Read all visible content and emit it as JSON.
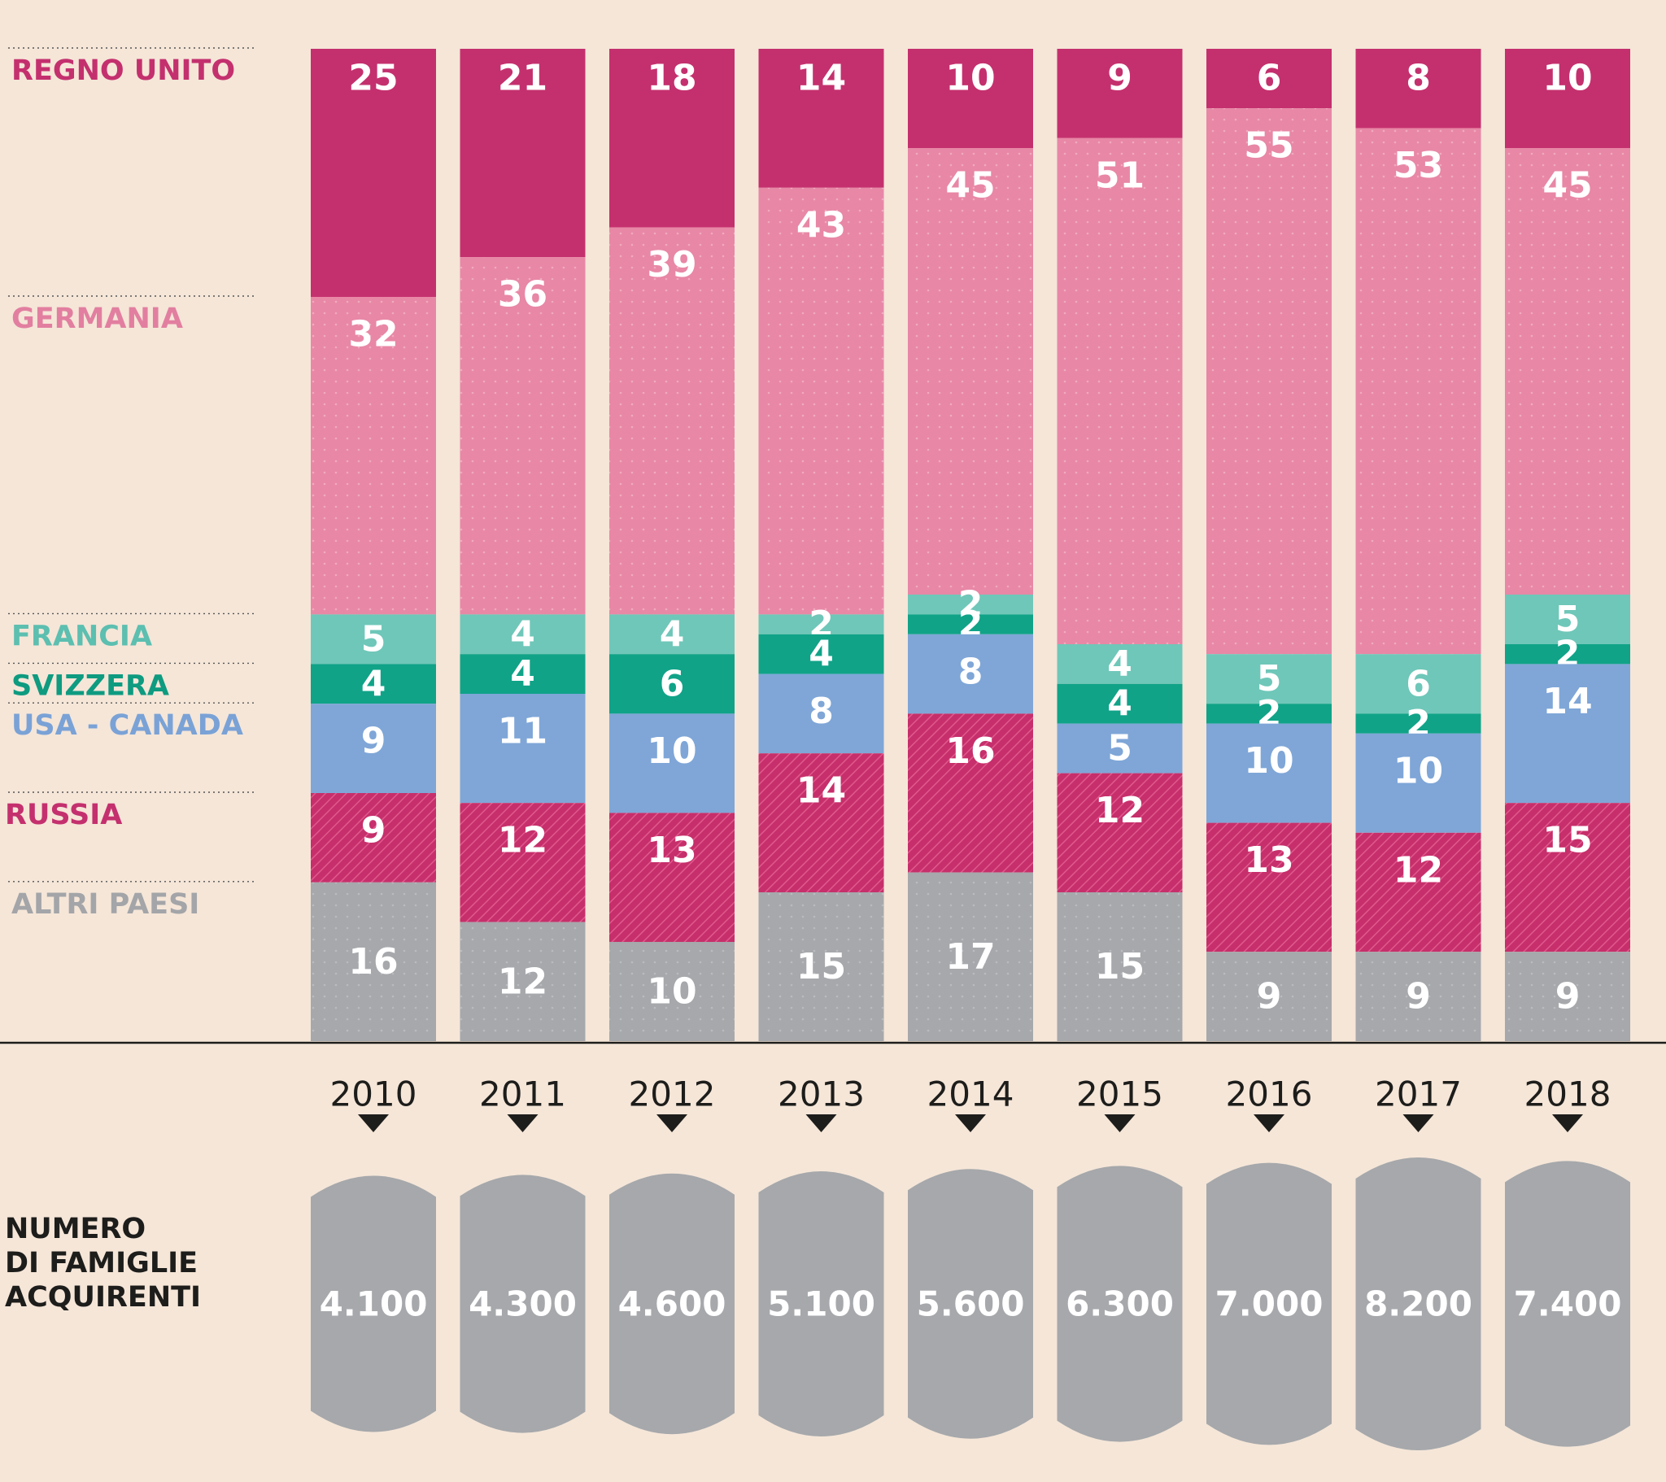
{
  "chart_data": {
    "type": "bar",
    "stacked": true,
    "unit": "%",
    "categories": [
      "2010",
      "2011",
      "2012",
      "2013",
      "2014",
      "2015",
      "2016",
      "2017",
      "2018"
    ],
    "series": [
      {
        "name": "REGNO UNITO",
        "color": "#c4306e",
        "text_color": "#c4306e",
        "pattern": "solid",
        "values": [
          25,
          21,
          18,
          14,
          10,
          9,
          6,
          8,
          10
        ]
      },
      {
        "name": "GERMANIA",
        "color": "#e887a6",
        "text_color": "#e27fa0",
        "pattern": "dots",
        "values": [
          32,
          36,
          39,
          43,
          45,
          51,
          55,
          53,
          45
        ]
      },
      {
        "name": "FRANCIA",
        "color": "#6fc7b9",
        "text_color": "#5cbfb0",
        "pattern": "solid",
        "values": [
          5,
          4,
          4,
          2,
          2,
          4,
          5,
          6,
          5
        ]
      },
      {
        "name": "SVIZZERA",
        "color": "#10a388",
        "text_color": "#0e9b80",
        "pattern": "solid",
        "values": [
          4,
          4,
          6,
          4,
          2,
          4,
          2,
          2,
          2
        ]
      },
      {
        "name": "USA - CANADA",
        "color": "#7fa6d7",
        "text_color": "#7aa2d6",
        "pattern": "solid",
        "values": [
          9,
          11,
          10,
          8,
          8,
          5,
          10,
          10,
          14
        ]
      },
      {
        "name": "RUSSIA",
        "color": "#c62f6b",
        "text_color": "#c4306e",
        "pattern": "hatch",
        "values": [
          9,
          12,
          13,
          14,
          16,
          12,
          13,
          12,
          15
        ]
      },
      {
        "name": "ALTRI PAESI",
        "color": "#a6a8ab",
        "text_color": "#a3a5a8",
        "pattern": "dots",
        "values": [
          16,
          12,
          10,
          15,
          17,
          15,
          9,
          9,
          9
        ]
      }
    ],
    "families_label": [
      "NUMERO",
      "DI FAMIGLIE",
      "ACQUIRENTI"
    ],
    "families": [
      "4.100",
      "4.300",
      "4.600",
      "5.100",
      "5.600",
      "6.300",
      "7.000",
      "8.200",
      "7.400"
    ],
    "families_numeric": [
      4100,
      4300,
      4600,
      5100,
      5600,
      6300,
      7000,
      8200,
      7400
    ],
    "families_color": "#a6a8ab"
  }
}
